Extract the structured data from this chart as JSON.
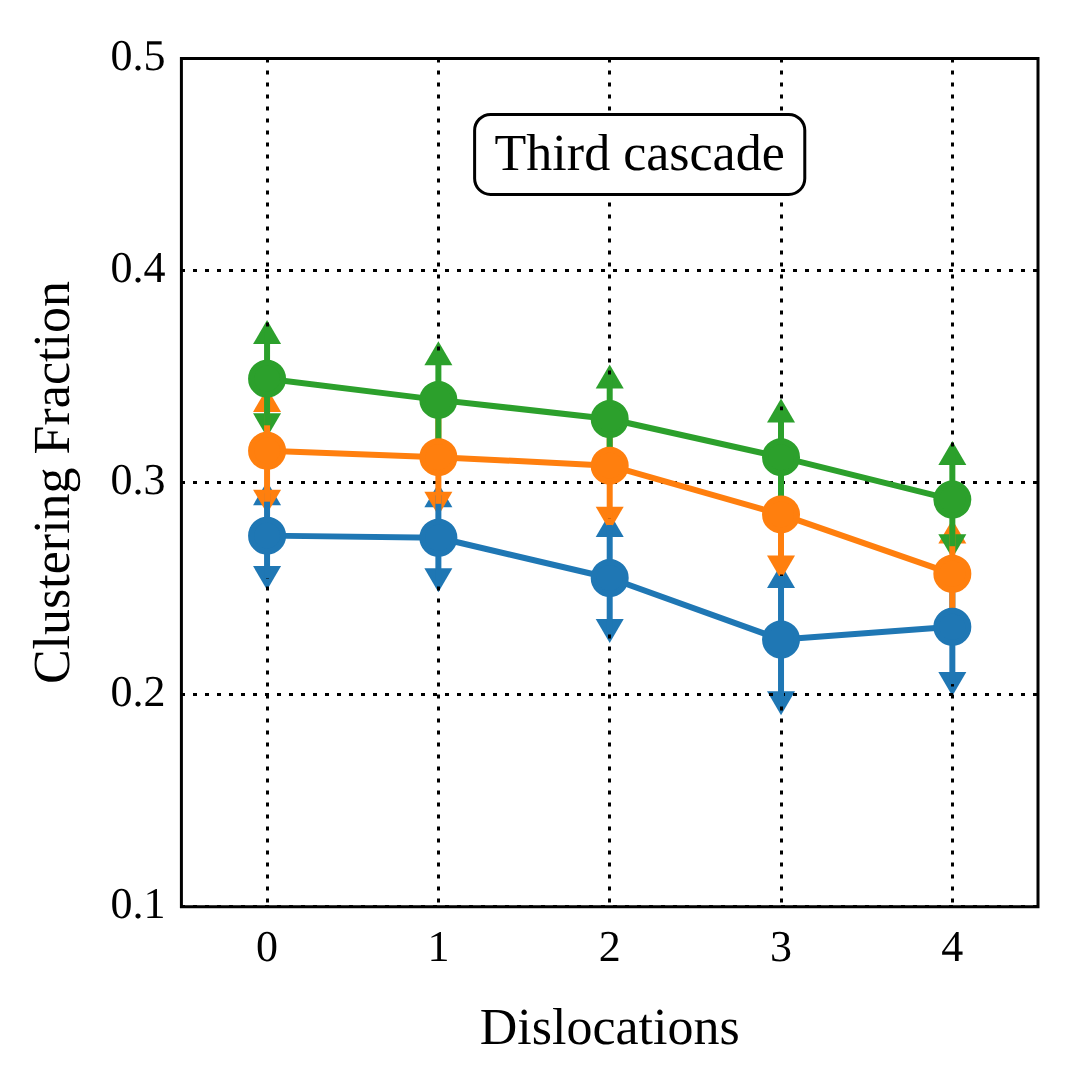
{
  "chart_data": {
    "type": "line",
    "xlabel": "Dislocations",
    "ylabel": "Clustering Fraction",
    "categories": [
      "0",
      "1",
      "2",
      "3",
      "4"
    ],
    "series": [
      {
        "color": "#1f77b4",
        "values": [
          0.275,
          0.274,
          0.255,
          0.226,
          0.232
        ],
        "errors": [
          0.02,
          0.02,
          0.025,
          0.03,
          0.027
        ]
      },
      {
        "color": "#ff7f0e",
        "values": [
          0.315,
          0.312,
          0.308,
          0.285,
          0.257
        ],
        "errors": [
          0.024,
          0.022,
          0.025,
          0.025,
          0.02
        ]
      },
      {
        "color": "#2ca02c",
        "values": [
          0.349,
          0.339,
          0.33,
          0.312,
          0.292
        ],
        "errors": [
          0.022,
          0.022,
          0.02,
          0.022,
          0.022
        ]
      }
    ],
    "ylim": [
      0.1,
      0.5
    ],
    "yticks": [
      0.1,
      0.2,
      0.3,
      0.4,
      0.5
    ],
    "grid": true,
    "legend": false,
    "marker": "circle",
    "line_style": "solid",
    "annotations": [
      "Third cascade"
    ]
  }
}
